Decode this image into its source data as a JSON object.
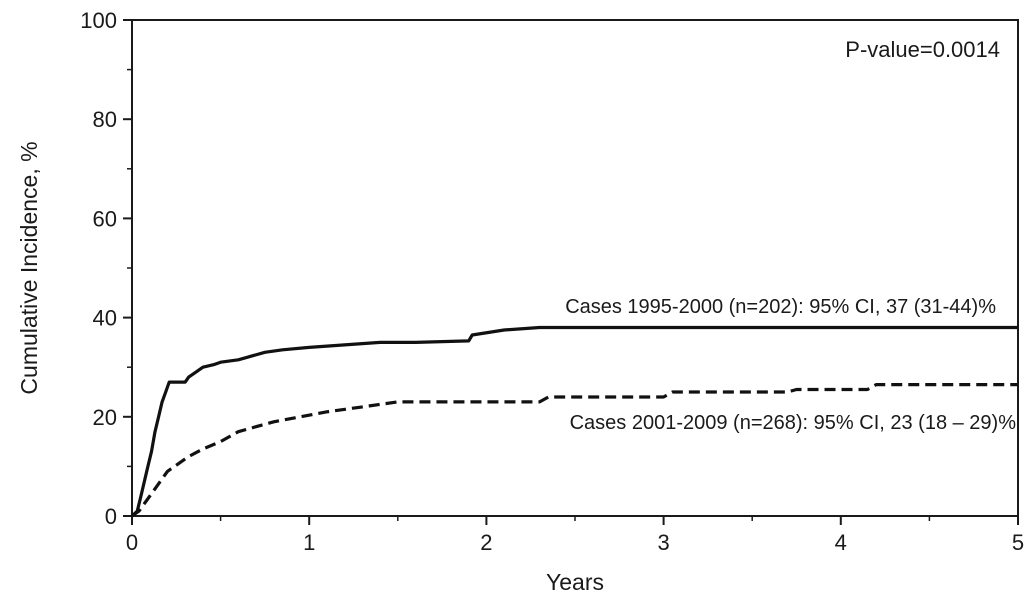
{
  "chart_data": {
    "type": "line",
    "title": "",
    "xlabel": "Years",
    "ylabel": "Cumulative Incidence, %",
    "xlim": [
      0,
      5
    ],
    "ylim": [
      0,
      100
    ],
    "x_ticks": [
      0,
      1,
      2,
      3,
      4,
      5
    ],
    "y_ticks": [
      0,
      20,
      40,
      60,
      80,
      100
    ],
    "grid": false,
    "annotations": {
      "p_value": "P-value=0.0014"
    },
    "series": [
      {
        "label": "Cases 1995-2000 (n=202): 95% CI, 37 (31-44)%",
        "line_style": "solid",
        "color": "#111111",
        "points": [
          [
            0,
            0
          ],
          [
            0.03,
            1
          ],
          [
            0.05,
            4
          ],
          [
            0.07,
            7
          ],
          [
            0.09,
            10
          ],
          [
            0.11,
            13
          ],
          [
            0.13,
            17
          ],
          [
            0.15,
            20
          ],
          [
            0.17,
            23
          ],
          [
            0.19,
            25
          ],
          [
            0.21,
            27
          ],
          [
            0.3,
            27
          ],
          [
            0.32,
            28
          ],
          [
            0.36,
            29
          ],
          [
            0.4,
            30
          ],
          [
            0.46,
            30.5
          ],
          [
            0.5,
            31
          ],
          [
            0.6,
            31.5
          ],
          [
            0.65,
            32
          ],
          [
            0.75,
            33
          ],
          [
            0.85,
            33.5
          ],
          [
            1.0,
            34
          ],
          [
            1.2,
            34.5
          ],
          [
            1.4,
            35
          ],
          [
            1.6,
            35
          ],
          [
            1.9,
            35.3
          ],
          [
            1.92,
            36.5
          ],
          [
            2.1,
            37.5
          ],
          [
            2.3,
            38
          ],
          [
            5,
            38
          ]
        ]
      },
      {
        "label": "Cases 2001-2009 (n=268): 95% CI, 23 (18 – 29)%",
        "line_style": "dashed",
        "color": "#111111",
        "points": [
          [
            0,
            0
          ],
          [
            0.04,
            1
          ],
          [
            0.08,
            3
          ],
          [
            0.12,
            5
          ],
          [
            0.16,
            7
          ],
          [
            0.2,
            9
          ],
          [
            0.26,
            10.5
          ],
          [
            0.32,
            12
          ],
          [
            0.4,
            13.5
          ],
          [
            0.5,
            15
          ],
          [
            0.6,
            17
          ],
          [
            0.7,
            18
          ],
          [
            0.8,
            19
          ],
          [
            0.95,
            20
          ],
          [
            1.1,
            21
          ],
          [
            1.3,
            22
          ],
          [
            1.5,
            23
          ],
          [
            1.8,
            23
          ],
          [
            2.3,
            23
          ],
          [
            2.35,
            24
          ],
          [
            3.0,
            24
          ],
          [
            3.05,
            25
          ],
          [
            3.7,
            25
          ],
          [
            3.75,
            25.5
          ],
          [
            4.15,
            25.5
          ],
          [
            4.2,
            26.5
          ],
          [
            5,
            26.5
          ]
        ]
      }
    ]
  }
}
